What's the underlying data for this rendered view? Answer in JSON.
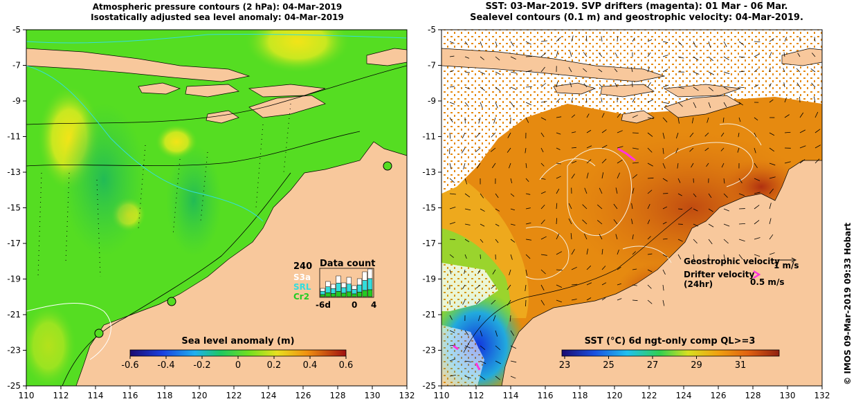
{
  "left_panel": {
    "title_line1": "Atmospheric pressure contours (2 hPa): 04-Mar-2019",
    "title_line2": "Isostatically adjusted sea level anomaly: 04-Mar-2019",
    "colorbar": {
      "label": "Sea level anomaly (m)",
      "ticks": [
        "-0.6",
        "-0.4",
        "-0.2",
        "0",
        "0.2",
        "0.4",
        "0.6"
      ]
    },
    "data_count": {
      "title": "Data count",
      "max_label": "240",
      "satellites": [
        {
          "name": "S3a",
          "color": "#ffffff"
        },
        {
          "name": "SRL",
          "color": "#33dddd"
        },
        {
          "name": "Cr2",
          "color": "#22cc22"
        }
      ],
      "x_ticks": [
        "-6d",
        "0",
        "4"
      ],
      "bars": [
        0.3,
        0.55,
        0.45,
        0.75,
        0.5,
        0.7,
        0.4,
        0.65,
        0.9,
        1.0
      ]
    }
  },
  "right_panel": {
    "title_line1": "SST: 03-Mar-2019. SVP drifters (magenta): 01 Mar - 06 Mar.",
    "title_line2": "Sealevel contours (0.1 m) and geostrophic velocity: 04-Mar-2019.",
    "colorbar": {
      "label": "SST (°C) 6d ngt-only comp QL>=3",
      "ticks": [
        "23",
        "25",
        "27",
        "29",
        "31"
      ]
    },
    "legend": {
      "geostrophic_label": "Geostrophic velocity",
      "geostrophic_scale": "1 m/s",
      "drifter_label": "Drifter velocity",
      "drifter_sub": "(24hr)",
      "drifter_scale": "0.5 m/s"
    }
  },
  "axes": {
    "x_ticks": [
      "110",
      "112",
      "114",
      "116",
      "118",
      "120",
      "122",
      "124",
      "126",
      "128",
      "130",
      "132"
    ],
    "y_ticks": [
      "-5",
      "-7",
      "-9",
      "-11",
      "-13",
      "-15",
      "-17",
      "-19",
      "-21",
      "-23",
      "-25"
    ]
  },
  "credit": "© IMOS 09-Mar-2019 09:33 Hobart",
  "colors": {
    "land": "#f8c89c",
    "ocean_green": "#55dd22",
    "sst_orange": "#e68a10"
  }
}
